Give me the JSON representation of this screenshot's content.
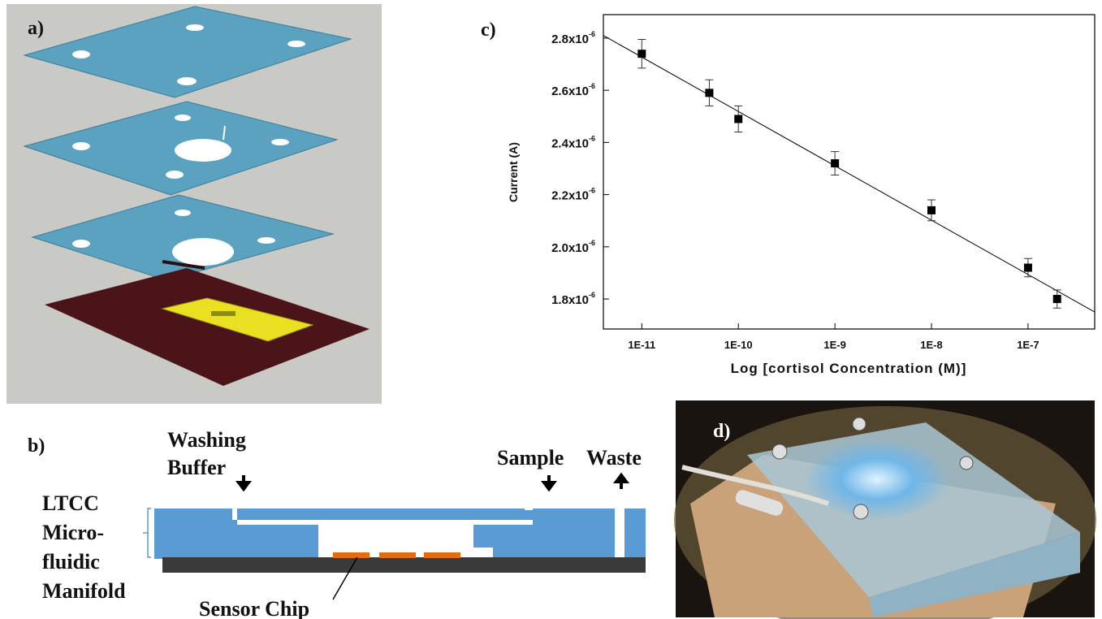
{
  "panels": {
    "a": {
      "label": "a)"
    },
    "b": {
      "label": "b)",
      "washing_buffer": [
        "Washing",
        "Buffer"
      ],
      "sample": "Sample",
      "waste": "Waste",
      "manifold": [
        "LTCC",
        "Micro-",
        "fluidic",
        "Manifold"
      ],
      "sensor_chip": "Sensor Chip"
    },
    "d": {
      "label": "d)"
    }
  },
  "chart_data": {
    "type": "scatter",
    "panel_label": "c)",
    "x_label": "Log [cortisol Concentration (M)]",
    "y_label": "Current (A)",
    "log_x": true,
    "color": "#000000",
    "x": [
      1e-11,
      5e-11,
      1e-10,
      1e-09,
      1e-08,
      1e-07,
      2e-07
    ],
    "values": [
      2.74e-06,
      2.59e-06,
      2.49e-06,
      2.32e-06,
      2.14e-06,
      1.92e-06,
      1.8e-06
    ],
    "errors": [
      5.5e-08,
      5e-08,
      5e-08,
      4.5e-08,
      4e-08,
      3.5e-08,
      3.5e-08
    ],
    "fit_line": {
      "x": [
        4e-12,
        4.9e-07
      ],
      "values": [
        2.81e-06,
        1.75e-06
      ]
    },
    "xlim": [
      4e-12,
      4.9e-07
    ],
    "ylim": [
      1.685e-06,
      2.89e-06
    ],
    "xticks": [
      {
        "value": 1e-11,
        "label": "1E-11"
      },
      {
        "value": 1e-10,
        "label": "1E-10"
      },
      {
        "value": 1e-09,
        "label": "1E-9"
      },
      {
        "value": 1e-08,
        "label": "1E-8"
      },
      {
        "value": 1e-07,
        "label": "1E-7"
      }
    ],
    "yticks": [
      {
        "value": 1.8e-06,
        "label": "1.8x10",
        "exponent": "-6"
      },
      {
        "value": 2e-06,
        "label": "2.0x10",
        "exponent": "-6"
      },
      {
        "value": 2.2e-06,
        "label": "2.2x10",
        "exponent": "-6"
      },
      {
        "value": 2.4e-06,
        "label": "2.4x10",
        "exponent": "-6"
      },
      {
        "value": 2.6e-06,
        "label": "2.6x10",
        "exponent": "-6"
      },
      {
        "value": 2.8e-06,
        "label": "2.8x10",
        "exponent": "-6"
      }
    ]
  }
}
